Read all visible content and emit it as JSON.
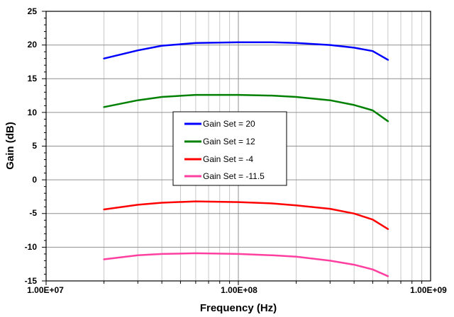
{
  "chart_data": {
    "type": "line",
    "xscale": "log",
    "xlim": [
      10000000,
      1000000000
    ],
    "ylim": [
      -15,
      25
    ],
    "xlabel": "Frequency (Hz)",
    "ylabel": "Gain (dB)",
    "x_tick_labels": [
      "1.00E+07",
      "1.00E+08",
      "1.00E+09"
    ],
    "y_tick_labels": [
      "25",
      "20",
      "15",
      "10",
      "5",
      "0",
      "-5",
      "-10",
      "-15"
    ],
    "grid": true,
    "legend_position": "center-left",
    "x": [
      20000000,
      30000000,
      40000000,
      60000000,
      100000000,
      150000000,
      200000000,
      300000000,
      400000000,
      500000000,
      600000000
    ],
    "series": [
      {
        "name": "Gain Set = 20",
        "color": "#0000ff",
        "values": [
          18.0,
          19.2,
          19.9,
          20.3,
          20.4,
          20.4,
          20.3,
          20.0,
          19.6,
          19.1,
          17.8
        ]
      },
      {
        "name": "Gain Set = 12",
        "color": "#008000",
        "values": [
          10.8,
          11.8,
          12.3,
          12.6,
          12.6,
          12.5,
          12.3,
          11.8,
          11.1,
          10.3,
          8.7
        ]
      },
      {
        "name": "Gain Set = -4",
        "color": "#ff0000",
        "values": [
          -4.4,
          -3.7,
          -3.4,
          -3.2,
          -3.3,
          -3.5,
          -3.8,
          -4.3,
          -5.0,
          -5.9,
          -7.3
        ]
      },
      {
        "name": "Gain Set = -11.5",
        "color": "#ff3fa0",
        "values": [
          -11.8,
          -11.2,
          -11.0,
          -10.9,
          -11.0,
          -11.2,
          -11.4,
          -12.0,
          -12.6,
          -13.3,
          -14.3
        ]
      }
    ]
  }
}
